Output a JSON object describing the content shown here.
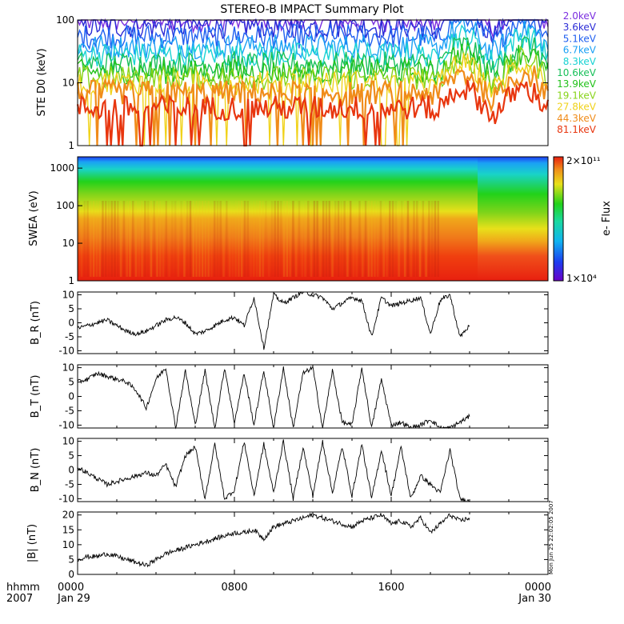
{
  "title": "STEREO-B IMPACT Summary Plot",
  "stamp": "Mon Jun 25 22:02:05 2007",
  "x_axis": {
    "row1_label": "hhmm",
    "row2_label": "2007",
    "ticks": [
      {
        "time": "0000",
        "date": "Jan 29"
      },
      {
        "time": "0800",
        "date": ""
      },
      {
        "time": "1600",
        "date": ""
      },
      {
        "time": "0000",
        "date": "Jan 30"
      }
    ]
  },
  "colorbar": {
    "label": "e- Flux",
    "max_label": "2×10¹¹",
    "min_label": "1×10⁴"
  },
  "chart_data": [
    {
      "type": "line",
      "id": "ste",
      "ylabel": "STE D0 (keV)",
      "yscale": "log",
      "ylim": [
        1,
        100
      ],
      "yticks": [
        "1",
        "10",
        "100"
      ],
      "xlim_hours": [
        0,
        24
      ],
      "series": [
        {
          "name": "2.0keV",
          "color": "#7b2ee0",
          "level": 100
        },
        {
          "name": "3.6keV",
          "color": "#2b2bd6",
          "level": 80
        },
        {
          "name": "5.1keV",
          "color": "#1f5ff0",
          "level": 55
        },
        {
          "name": "6.7keV",
          "color": "#1aa0f5",
          "level": 38
        },
        {
          "name": "8.3keV",
          "color": "#19d3d3",
          "level": 28
        },
        {
          "name": "10.6keV",
          "color": "#19c05a",
          "level": 20
        },
        {
          "name": "13.9keV",
          "color": "#22c21a",
          "level": 15
        },
        {
          "name": "19.1keV",
          "color": "#88d41a",
          "level": 12
        },
        {
          "name": "27.8keV",
          "color": "#f0d21a",
          "level": 10
        },
        {
          "name": "44.3keV",
          "color": "#f08c1a",
          "level": 7
        },
        {
          "name": "81.1keV",
          "color": "#e8360f",
          "level": 4
        }
      ]
    },
    {
      "type": "heatmap",
      "id": "swea",
      "ylabel": "SWEA (eV)",
      "yscale": "log",
      "ylim": [
        1,
        2000
      ],
      "yticks": [
        "1",
        "10",
        "100",
        "1000"
      ],
      "xlim_hours": [
        0,
        24
      ],
      "zlim": [
        "1×10⁴",
        "2×10¹¹"
      ]
    },
    {
      "type": "line",
      "id": "br",
      "ylabel": "B_R (nT)",
      "ylim": [
        -11,
        11
      ],
      "yticks": [
        "10",
        "5",
        "0",
        "-5",
        "-10"
      ],
      "x_hours": [
        0,
        0.5,
        1,
        1.5,
        2,
        2.5,
        3,
        3.5,
        4,
        4.5,
        5,
        5.5,
        6,
        6.5,
        7,
        7.5,
        8,
        8.5,
        9,
        9.5,
        10,
        10.5,
        11,
        11.5,
        12,
        12.5,
        13,
        13.5,
        14,
        14.5,
        15,
        15.5,
        16,
        16.5,
        17,
        17.5,
        18,
        18.5,
        19,
        19.5,
        20
      ],
      "values": [
        -2,
        -1,
        0,
        1,
        -1,
        -3,
        -4,
        -3,
        -1,
        1,
        2,
        0,
        -4,
        -3,
        -1,
        1,
        2,
        -1,
        9,
        -9,
        10,
        7,
        9,
        11,
        10,
        9,
        5,
        7,
        9,
        8,
        -5,
        9,
        6,
        7,
        8,
        9,
        -4,
        8,
        10,
        -5,
        -1
      ]
    },
    {
      "type": "line",
      "id": "bt",
      "ylabel": "B_T (nT)",
      "ylim": [
        -11,
        11
      ],
      "yticks": [
        "10",
        "5",
        "0",
        "-5",
        "-10"
      ],
      "x_hours": [
        0,
        0.5,
        1,
        1.5,
        2,
        2.5,
        3,
        3.5,
        4,
        4.5,
        5,
        5.5,
        6,
        6.5,
        7,
        7.5,
        8,
        8.5,
        9,
        9.5,
        10,
        10.5,
        11,
        11.5,
        12,
        12.5,
        13,
        13.5,
        14,
        14.5,
        15,
        15.5,
        16,
        16.5,
        17,
        17.5,
        18,
        18.5,
        19,
        19.5,
        20
      ],
      "values": [
        5,
        6,
        8,
        7,
        6,
        5,
        2,
        -4,
        6,
        10,
        -11,
        9,
        -10,
        9,
        -11,
        10,
        -9,
        8,
        -10,
        9,
        -11,
        10,
        -11,
        8,
        10,
        -11,
        9,
        -9,
        -10,
        10,
        -11,
        6,
        -10,
        -9,
        -11,
        -10,
        -8,
        -11,
        -11,
        -9,
        -7
      ]
    },
    {
      "type": "line",
      "id": "bn",
      "ylabel": "B_N (nT)",
      "ylim": [
        -11,
        11
      ],
      "yticks": [
        "10",
        "5",
        "0",
        "-5",
        "-10"
      ],
      "x_hours": [
        0,
        0.5,
        1,
        1.5,
        2,
        2.5,
        3,
        3.5,
        4,
        4.5,
        5,
        5.5,
        6,
        6.5,
        7,
        7.5,
        8,
        8.5,
        9,
        9.5,
        10,
        10.5,
        11,
        11.5,
        12,
        12.5,
        13,
        13.5,
        14,
        14.5,
        15,
        15.5,
        16,
        16.5,
        17,
        17.5,
        18,
        18.5,
        19,
        19.5,
        20
      ],
      "values": [
        1,
        -1,
        -3,
        -5,
        -4,
        -3,
        -2,
        -1,
        -2,
        2,
        -6,
        5,
        8,
        -10,
        9,
        -10,
        -7,
        10,
        -9,
        9,
        -8,
        10,
        -10,
        8,
        -9,
        10,
        -8,
        8,
        -9,
        9,
        -10,
        7,
        -9,
        8,
        -10,
        -2,
        -5,
        -8,
        7,
        -10,
        -11
      ]
    },
    {
      "type": "line",
      "id": "bmag",
      "ylabel": "|B| (nT)",
      "ylim": [
        0,
        21
      ],
      "yticks": [
        "20",
        "15",
        "10",
        "5",
        "0"
      ],
      "x_hours": [
        0,
        0.5,
        1,
        1.5,
        2,
        2.5,
        3,
        3.5,
        4,
        4.5,
        5,
        5.5,
        6,
        6.5,
        7,
        7.5,
        8,
        8.5,
        9,
        9.5,
        10,
        10.5,
        11,
        11.5,
        12,
        12.5,
        13,
        13.5,
        14,
        14.5,
        15,
        15.5,
        16,
        16.5,
        17,
        17.5,
        18,
        18.5,
        19,
        19.5,
        20
      ],
      "values": [
        5,
        6,
        6,
        7,
        6,
        5,
        4,
        3,
        5,
        7,
        8,
        9,
        10,
        11,
        12,
        13,
        14,
        14,
        15,
        12,
        16,
        17,
        18,
        19,
        20,
        19,
        18,
        17,
        16,
        18,
        19,
        20,
        17,
        18,
        16,
        19,
        14,
        17,
        20,
        18,
        19
      ]
    }
  ]
}
